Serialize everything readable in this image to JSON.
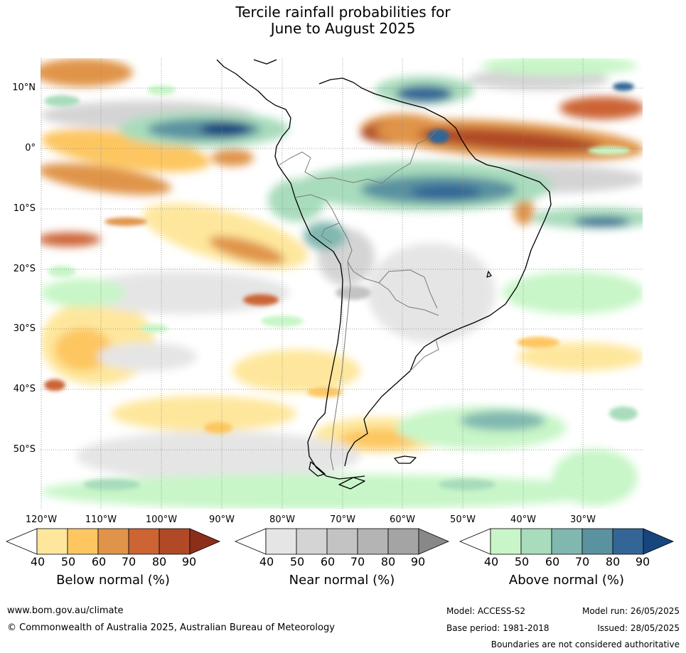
{
  "title": {
    "line1": "Tercile rainfall probabilities for",
    "line2": "June to August 2025"
  },
  "map": {
    "region": "South America",
    "lat_labels": [
      "10°N",
      "0°",
      "10°S",
      "20°S",
      "30°S",
      "40°S",
      "50°S"
    ],
    "lon_labels": [
      "120°W",
      "110°W",
      "100°W",
      "90°W",
      "80°W",
      "70°W",
      "60°W",
      "50°W",
      "40°W",
      "30°W"
    ],
    "grid": true,
    "grid_style": "dotted"
  },
  "legends": [
    {
      "name": "Below normal (%)",
      "ticks": [
        "40",
        "50",
        "60",
        "70",
        "80",
        "90"
      ],
      "colors": [
        "#ffffff",
        "#fee79c",
        "#fdc661",
        "#e0944a",
        "#cc6434",
        "#b04a26",
        "#8c2f1a"
      ]
    },
    {
      "name": "Near normal (%)",
      "ticks": [
        "40",
        "50",
        "60",
        "70",
        "80",
        "90"
      ],
      "colors": [
        "#ffffff",
        "#e5e5e5",
        "#d4d4d4",
        "#c3c3c3",
        "#b4b4b4",
        "#a4a4a4",
        "#888888"
      ]
    },
    {
      "name": "Above normal (%)",
      "ticks": [
        "40",
        "50",
        "60",
        "70",
        "80",
        "90"
      ],
      "colors": [
        "#ffffff",
        "#c8f6c8",
        "#a8dcbc",
        "#80b8b0",
        "#5a92a0",
        "#336696",
        "#17467e"
      ]
    }
  ],
  "footer": {
    "url": "www.bom.gov.au/climate",
    "copyright": "© Commonwealth of Australia 2025, Australian Bureau of Meteorology",
    "model": "Model: ACCESS-S2",
    "model_run": "Model run: 26/05/2025",
    "base_period": "Base period: 1981-2018",
    "issued": "Issued: 28/05/2025",
    "disclaimer": "Boundaries are not considered authoritative"
  }
}
